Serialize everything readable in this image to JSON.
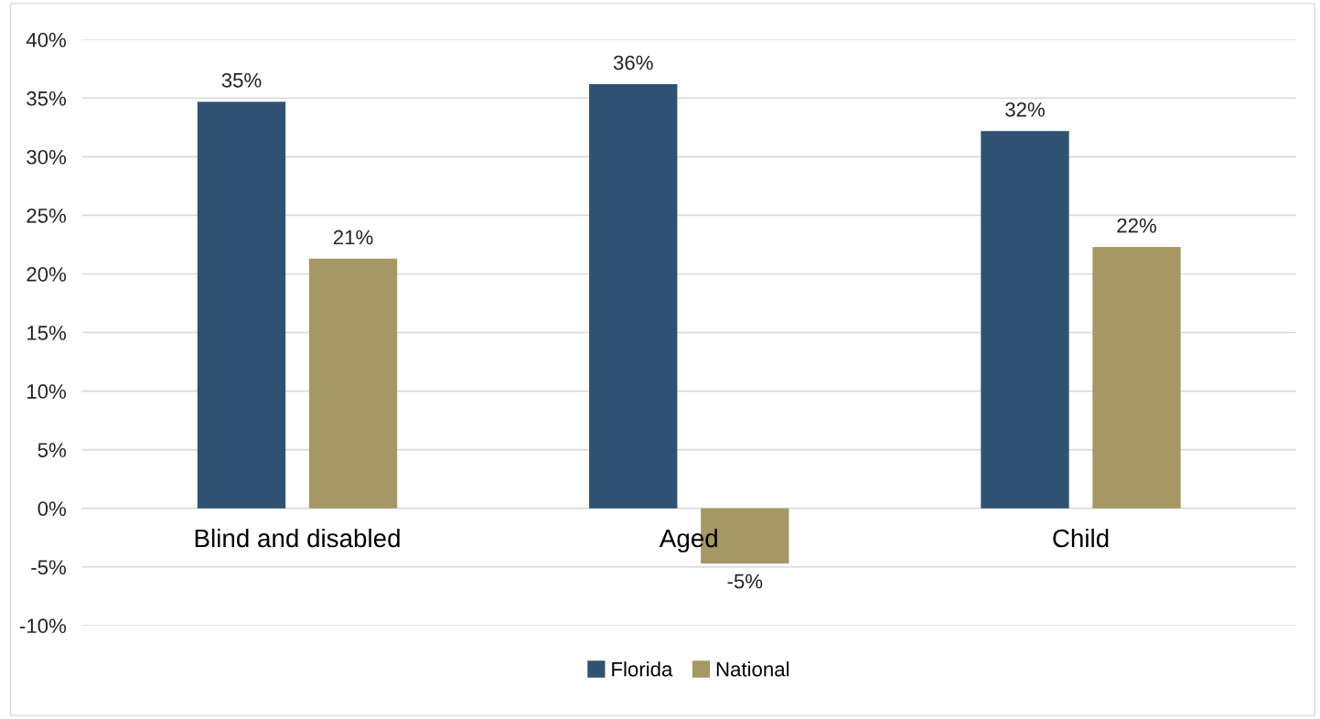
{
  "chart_data": {
    "type": "bar",
    "categories": [
      "Blind and disabled",
      "Aged",
      "Child"
    ],
    "series": [
      {
        "name": "Florida",
        "color": "#2f5272",
        "values": [
          34.7,
          36.2,
          32.2
        ],
        "value_labels": [
          "35%",
          "36%",
          "32%"
        ]
      },
      {
        "name": "National",
        "color": "#a59865",
        "values": [
          21.3,
          -4.7,
          22.3
        ],
        "value_labels": [
          "21%",
          "-5%",
          "22%"
        ]
      }
    ],
    "ylim": [
      -10,
      40
    ],
    "yticks": [
      {
        "value": -10,
        "label": "-10%"
      },
      {
        "value": -5,
        "label": "-5%"
      },
      {
        "value": 0,
        "label": "0%"
      },
      {
        "value": 5,
        "label": "5%"
      },
      {
        "value": 10,
        "label": "10%"
      },
      {
        "value": 15,
        "label": "15%"
      },
      {
        "value": 20,
        "label": "20%"
      },
      {
        "value": 25,
        "label": "25%"
      },
      {
        "value": 30,
        "label": "30%"
      },
      {
        "value": 35,
        "label": "35%"
      },
      {
        "value": 40,
        "label": "40%"
      }
    ],
    "grid": "y",
    "legend": "bottom"
  }
}
